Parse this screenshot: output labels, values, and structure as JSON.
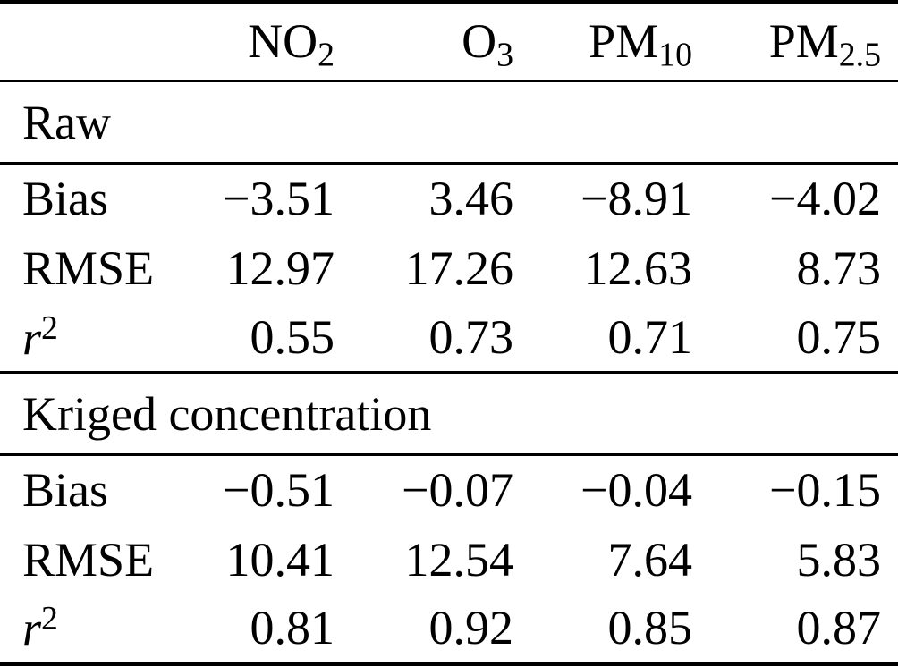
{
  "colors": {
    "text": "#000000",
    "rule": "#000000",
    "background": "#ffffff"
  },
  "table": {
    "columns": [
      {
        "base": "NO",
        "sub": "2"
      },
      {
        "base": "O",
        "sub": "3"
      },
      {
        "base": "PM",
        "sub": "10"
      },
      {
        "base": "PM",
        "sub": "2.5"
      }
    ],
    "sections": [
      {
        "title": "Raw",
        "rows": [
          {
            "label": "Bias",
            "values": [
              "−3.51",
              "3.46",
              "−8.91",
              "−4.02"
            ]
          },
          {
            "label": "RMSE",
            "values": [
              "12.97",
              "17.26",
              "12.63",
              "8.73"
            ]
          },
          {
            "label": "r",
            "label_sup": "2",
            "values": [
              "0.55",
              "0.73",
              "0.71",
              "0.75"
            ]
          }
        ]
      },
      {
        "title": "Kriged concentration",
        "rows": [
          {
            "label": "Bias",
            "values": [
              "−0.51",
              "−0.07",
              "−0.04",
              "−0.15"
            ]
          },
          {
            "label": "RMSE",
            "values": [
              "10.41",
              "12.54",
              "7.64",
              "5.83"
            ]
          },
          {
            "label": "r",
            "label_sup": "2",
            "values": [
              "0.81",
              "0.92",
              "0.85",
              "0.87"
            ]
          }
        ]
      }
    ]
  }
}
